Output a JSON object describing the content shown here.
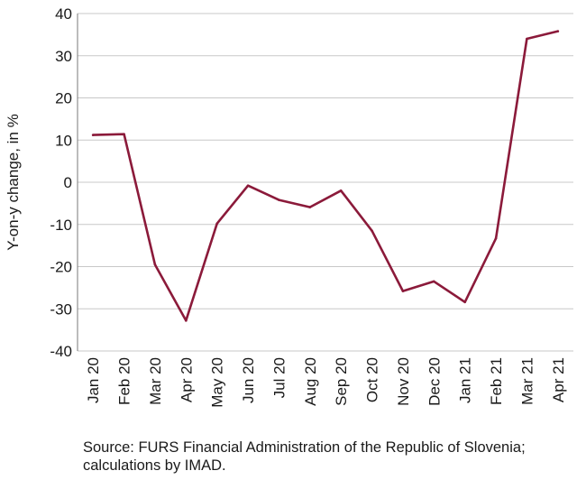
{
  "chart_data": {
    "type": "line",
    "categories": [
      "Jan 20",
      "Feb 20",
      "Mar 20",
      "Apr 20",
      "May 20",
      "Jun 20",
      "Jul 20",
      "Aug 20",
      "Sep 20",
      "Oct 20",
      "Nov 20",
      "Dec 20",
      "Jan 21",
      "Feb 21",
      "Mar 21",
      "Apr 21"
    ],
    "series": [
      {
        "values": [
          11.2,
          11.4,
          -19.5,
          -32.8,
          -9.8,
          -0.8,
          -4.2,
          -5.9,
          -2.0,
          -11.5,
          -25.8,
          -23.5,
          -28.4,
          -13.3,
          34.0,
          35.8
        ]
      }
    ],
    "ylabel": "Y-on-y change, in %",
    "ylim": [
      -40,
      40
    ],
    "yticks": [
      40,
      30,
      20,
      10,
      0,
      -10,
      -20,
      -30,
      -40
    ],
    "grid": true,
    "line_color": "#8b1a3a",
    "grid_color": "#c8c8c8"
  },
  "source": "Source: FURS Financial Administration of the Republic of Slovenia; calculations by IMAD."
}
